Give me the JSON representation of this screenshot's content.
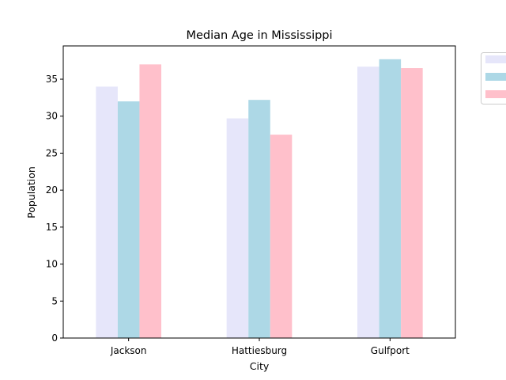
{
  "chart_data": {
    "type": "bar",
    "title": "Median Age in Mississippi",
    "xlabel": "City",
    "ylabel": "Population",
    "categories": [
      "Jackson",
      "Hattiesburg",
      "Gulfport"
    ],
    "series": [
      {
        "values": [
          34.0,
          29.7,
          36.7
        ],
        "color": "#e6e6fa"
      },
      {
        "values": [
          32.0,
          32.2,
          37.7
        ],
        "color": "#add8e6"
      },
      {
        "values": [
          37.0,
          27.5,
          36.5
        ],
        "color": "#ffc0cb"
      }
    ],
    "ylim": [
      0,
      39.5
    ],
    "yticks": [
      0,
      5,
      10,
      15,
      20,
      25,
      30,
      35
    ],
    "grid": false,
    "legend_position": "top-right outside"
  }
}
